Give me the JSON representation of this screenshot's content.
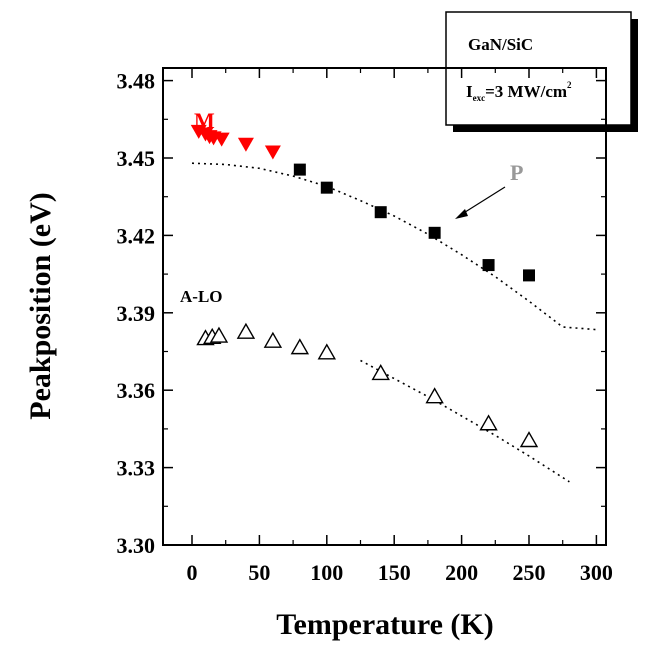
{
  "chart_data": {
    "type": "scatter",
    "xlabel": "Temperature (K)",
    "ylabel": "Peakposition (eV)",
    "xlim": [
      -20,
      310
    ],
    "ylim": [
      3.3,
      3.49
    ],
    "xticks": [
      0,
      50,
      100,
      150,
      200,
      250,
      300
    ],
    "yticks": [
      3.3,
      3.33,
      3.36,
      3.39,
      3.42,
      3.45,
      3.48
    ],
    "xtick_labels": [
      "0",
      "50",
      "100",
      "150",
      "200",
      "250",
      "300"
    ],
    "ytick_labels": [
      "3.30",
      "3.33",
      "3.36",
      "3.39",
      "3.42",
      "3.45",
      "3.48"
    ],
    "legend_box": {
      "line1": "GaN/SiC",
      "line2_prefix": "I",
      "line2_sub": "exc",
      "line2_main": "=3 MW/cm",
      "line2_sup": "2"
    },
    "annotations": [
      {
        "text": "M",
        "color": "#ff0000"
      },
      {
        "text": "P",
        "color": "#999999"
      },
      {
        "text": "A-LO",
        "color": "#000000"
      }
    ],
    "series": [
      {
        "marker": "filled-down-triangle",
        "color": "#ff0000",
        "x": [
          5,
          10,
          13,
          16,
          22,
          40,
          60
        ],
        "y": [
          3.4605,
          3.4595,
          3.4585,
          3.458,
          3.4575,
          3.4555,
          3.4525
        ]
      },
      {
        "marker": "filled-square",
        "color": "#000000",
        "x": [
          80,
          100,
          140,
          180,
          220,
          250
        ],
        "y": [
          3.4455,
          3.4385,
          3.429,
          3.421,
          3.4085,
          3.4045
        ]
      },
      {
        "marker": "open-triangle",
        "color": "#000000",
        "x": [
          10,
          15,
          20,
          40,
          60,
          80,
          100,
          140,
          180,
          220,
          250
        ],
        "y": [
          3.38,
          3.3805,
          3.381,
          3.3825,
          3.379,
          3.3765,
          3.3745,
          3.3665,
          3.3575,
          3.347,
          3.3405
        ]
      }
    ],
    "fit_lines": [
      {
        "style": "dotted",
        "color": "#000000",
        "x": [
          0,
          25,
          50,
          75,
          100,
          125,
          150,
          175,
          200,
          225,
          250,
          275,
          300
        ],
        "y": [
          3.448,
          3.4475,
          3.446,
          3.443,
          3.439,
          3.4335,
          3.4275,
          3.4205,
          3.4125,
          3.404,
          3.3945,
          3.3845,
          3.3835
        ]
      },
      {
        "style": "dotted",
        "color": "#000000",
        "x": [
          125,
          150,
          175,
          200,
          225,
          250,
          280
        ],
        "y": [
          3.3715,
          3.3645,
          3.3575,
          3.35,
          3.3425,
          3.3345,
          3.3245
        ]
      }
    ]
  }
}
